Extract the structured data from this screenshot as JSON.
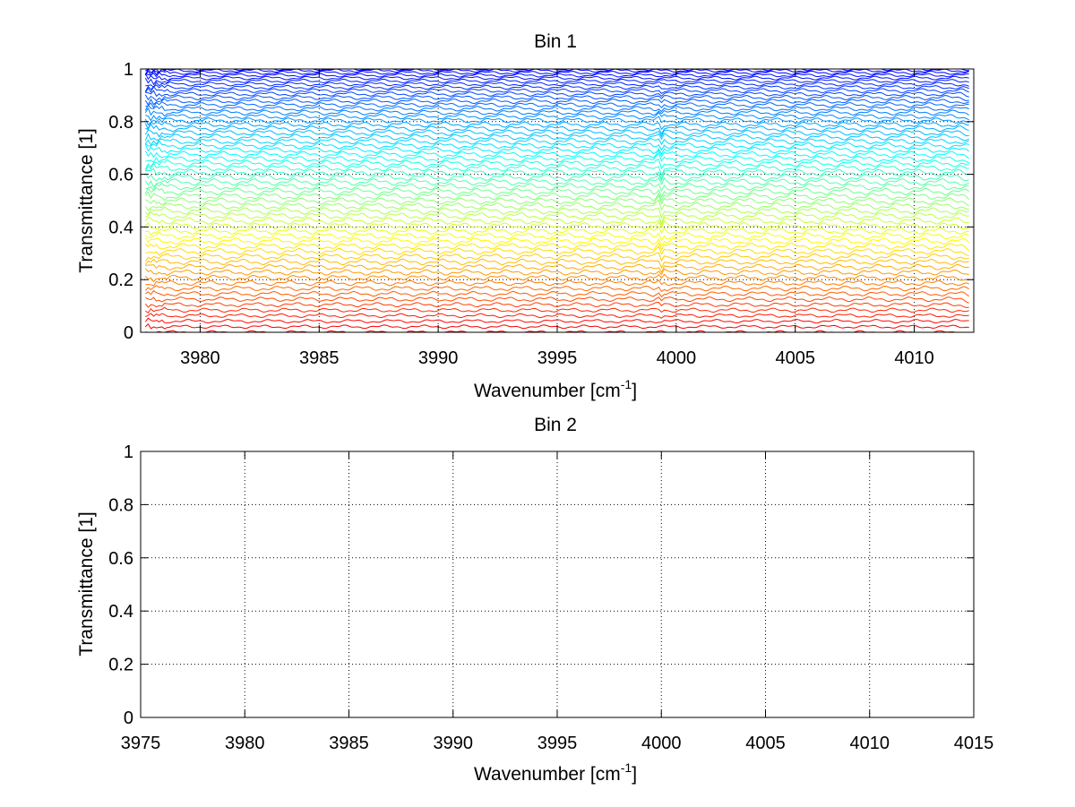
{
  "chart_data": [
    {
      "type": "line",
      "title": "Bin 1",
      "xlabel": "Wavenumber [cm",
      "xlabel_sup": "-1",
      "xlabel_end": "]",
      "ylabel": "Transmittance [1]",
      "xlim": [
        3977.5,
        4012.5
      ],
      "ylim": [
        0,
        1
      ],
      "xticks": [
        "3980",
        "3985",
        "3990",
        "3995",
        "4000",
        "4005",
        "4010"
      ],
      "yticks": [
        "0",
        "0.2",
        "0.4",
        "0.6",
        "0.8",
        "1"
      ],
      "grid": true,
      "x_range": [
        3977.7,
        4012.3
      ],
      "num_series": 60,
      "level_min": 0.0,
      "level_max": 1.0,
      "colormap": "jet (blue at transmittance 1, red at transmittance 0)",
      "feature_wavenumber": 3999.3
    },
    {
      "type": "line",
      "title": "Bin 2",
      "xlabel": "Wavenumber [cm",
      "xlabel_sup": "-1",
      "xlabel_end": "]",
      "ylabel": "Transmittance [1]",
      "xlim": [
        3975,
        4015
      ],
      "ylim": [
        0,
        1
      ],
      "xticks": [
        "3975",
        "3980",
        "3985",
        "3990",
        "3995",
        "4000",
        "4005",
        "4010",
        "4015"
      ],
      "yticks": [
        "0",
        "0.2",
        "0.4",
        "0.6",
        "0.8",
        "1"
      ],
      "grid": true,
      "series": []
    }
  ]
}
